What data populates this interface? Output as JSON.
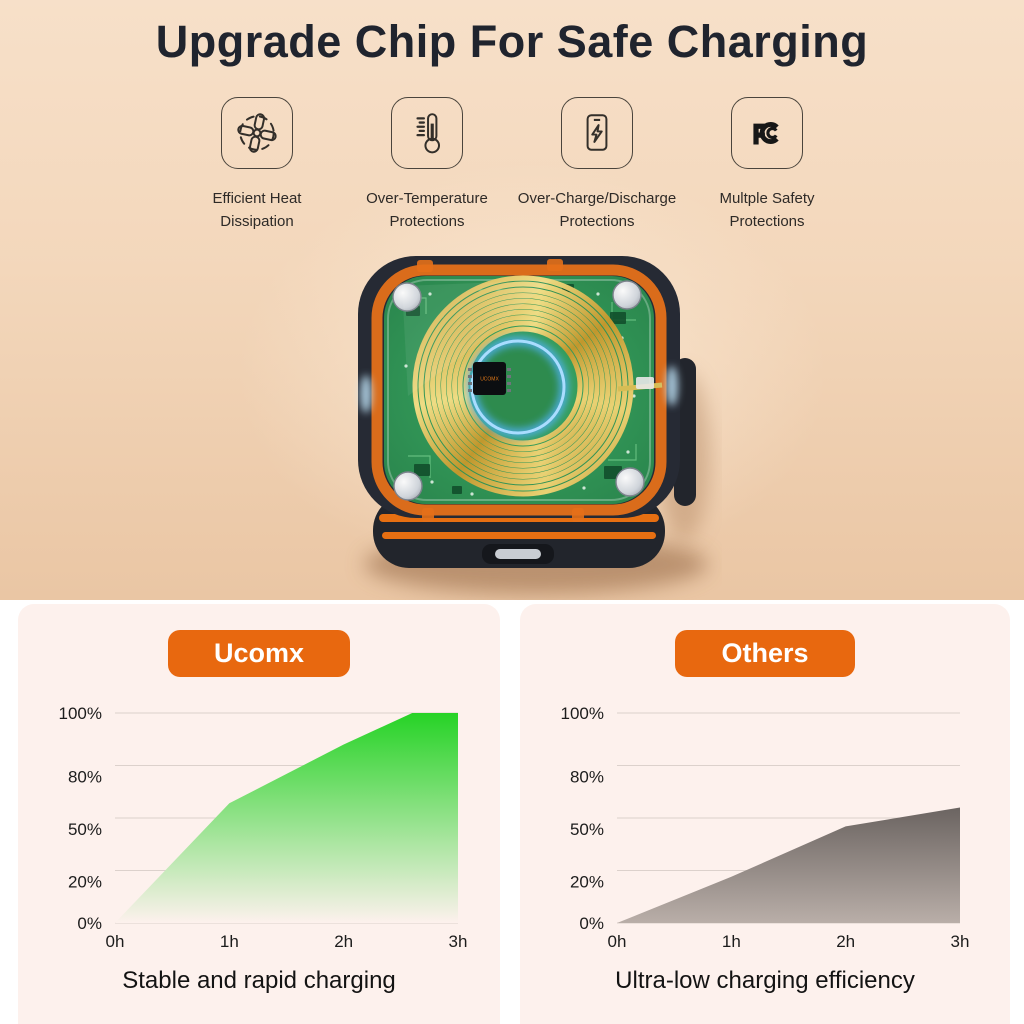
{
  "header": {
    "title": "Upgrade Chip For Safe Charging"
  },
  "features": [
    {
      "icon": "fan-icon",
      "label": "Efficient Heat\nDissipation"
    },
    {
      "icon": "thermometer-icon",
      "label": "Over-Temperature\nProtections"
    },
    {
      "icon": "phone-charge-icon",
      "label": "Over-Charge/Discharge\nProtections"
    },
    {
      "icon": "fcc-icon",
      "label": "Multple Safety\nProtections"
    }
  ],
  "product": {
    "chip_label": "UCOMX"
  },
  "colors": {
    "accent_orange": "#E8680F",
    "panel_pink": "#FDF1ED",
    "hero_top": "#F7E0C9",
    "hero_bottom": "#EAC6A4",
    "title_text": "#20242E",
    "green_fill": "#26D326",
    "gray_fill": "#6B6461",
    "grid_line": "#DCD1CC"
  },
  "chart_data": [
    {
      "type": "area",
      "title": "Ucomx",
      "caption": "Stable and rapid charging",
      "x": [
        0,
        1,
        2,
        2.6,
        3
      ],
      "values": [
        0,
        57,
        85,
        100,
        100
      ],
      "x_tick_labels": [
        "0h",
        "1h",
        "2h",
        "3h"
      ],
      "y_tick_labels": [
        "100%",
        "80%",
        "50%",
        "20%",
        "0%"
      ],
      "ylim": [
        0,
        100
      ],
      "grid": true,
      "legend": "none",
      "fill_top": "#26d326",
      "fill_bottom": "#fdf1ed"
    },
    {
      "type": "area",
      "title": "Others",
      "caption": "Ultra-low charging efficiency",
      "x": [
        0,
        1,
        2,
        3
      ],
      "values": [
        0,
        22,
        46,
        55
      ],
      "x_tick_labels": [
        "0h",
        "1h",
        "2h",
        "3h"
      ],
      "y_tick_labels": [
        "100%",
        "80%",
        "50%",
        "20%",
        "0%"
      ],
      "ylim": [
        0,
        100
      ],
      "grid": true,
      "legend": "none",
      "fill_top": "#6b6461",
      "fill_bottom": "#b9aea8"
    }
  ]
}
